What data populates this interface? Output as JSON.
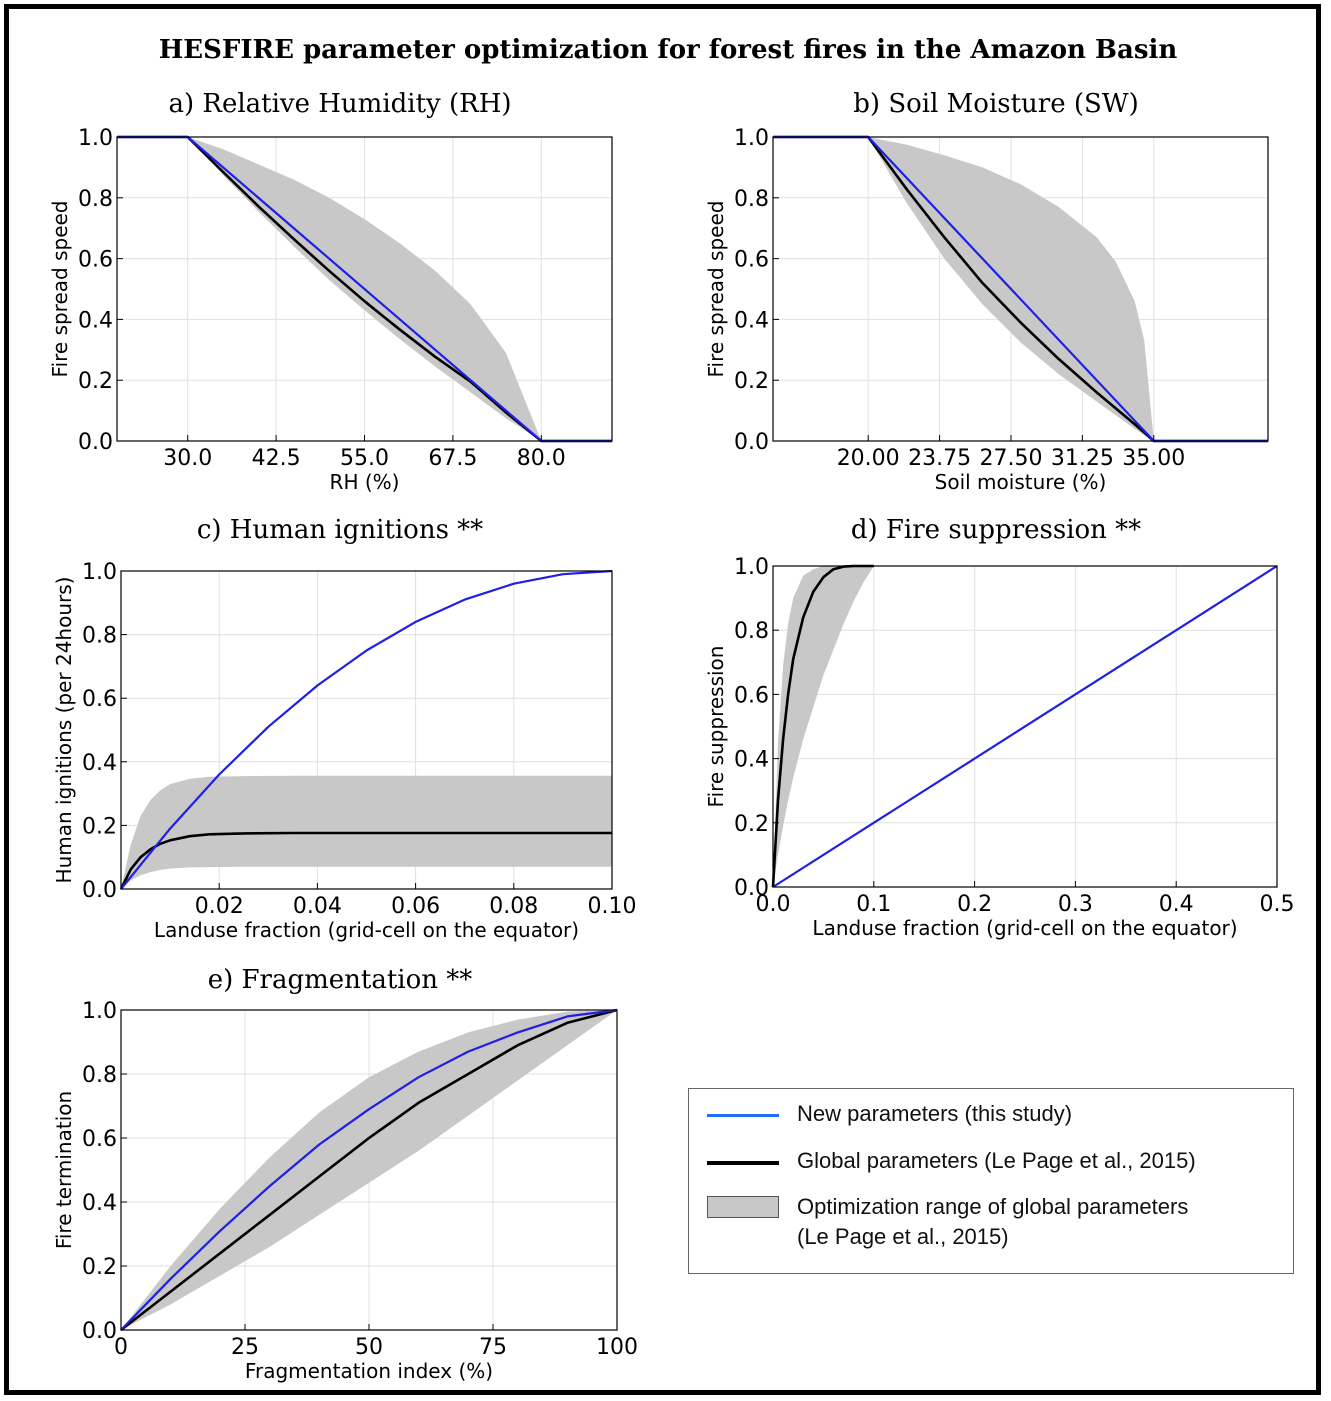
{
  "figure_title": "HESFIRE parameter optimization for forest fires in the Amazon Basin",
  "legend": {
    "new_label": "New parameters (this study)",
    "global_label": "Global parameters (Le Page et al., 2015)",
    "range_label_1": "Optimization range of global parameters",
    "range_label_2": "(Le Page et al., 2015)"
  },
  "colors": {
    "new": "#1f1fe6",
    "global": "#000000",
    "range": "#c8c8c8"
  },
  "chart_data": [
    {
      "id": "a",
      "type": "line",
      "title": "a) Relative Humidity (RH)",
      "xlabel": "RH (%)",
      "ylabel": "Fire spread speed",
      "xlim": [
        20,
        90
      ],
      "ylim": [
        0,
        1
      ],
      "xticks": [
        30,
        42.5,
        55,
        67.5,
        80
      ],
      "xtick_labels": [
        "30.0",
        "42.5",
        "55.0",
        "67.5",
        "80.0"
      ],
      "yticks": [
        0,
        0.2,
        0.4,
        0.6,
        0.8,
        1.0
      ],
      "ytick_labels": [
        "0.0",
        "0.2",
        "0.4",
        "0.6",
        "0.8",
        "1.0"
      ],
      "grid": true,
      "series": [
        {
          "role": "new",
          "x": [
            20,
            30,
            80,
            90
          ],
          "y": [
            1,
            1,
            0,
            0
          ]
        },
        {
          "role": "global",
          "x": [
            20,
            30,
            35,
            40,
            45,
            50,
            55,
            60,
            65,
            70,
            75,
            80,
            90
          ],
          "y": [
            1,
            1,
            0.885,
            0.772,
            0.664,
            0.56,
            0.46,
            0.366,
            0.277,
            0.195,
            0.094,
            0,
            0
          ]
        }
      ],
      "band": {
        "x": [
          30,
          35,
          40,
          45,
          50,
          55,
          60,
          65,
          70,
          75,
          80
        ],
        "upper": [
          1,
          0.96,
          0.91,
          0.86,
          0.8,
          0.73,
          0.65,
          0.56,
          0.45,
          0.29,
          0
        ],
        "lower": [
          1,
          0.875,
          0.755,
          0.64,
          0.53,
          0.43,
          0.335,
          0.245,
          0.16,
          0.075,
          0
        ]
      }
    },
    {
      "id": "b",
      "type": "line",
      "title": "b) Soil Moisture (SW)",
      "xlabel": "Soil moisture (%)",
      "ylabel": "Fire spread speed",
      "xlim": [
        15,
        41
      ],
      "ylim": [
        0,
        1
      ],
      "xticks": [
        20,
        23.75,
        27.5,
        31.25,
        35
      ],
      "xtick_labels": [
        "20.00",
        "23.75",
        "27.50",
        "31.25",
        "35.00"
      ],
      "yticks": [
        0,
        0.2,
        0.4,
        0.6,
        0.8,
        1.0
      ],
      "ytick_labels": [
        "0.0",
        "0.2",
        "0.4",
        "0.6",
        "0.8",
        "1.0"
      ],
      "grid": true,
      "series": [
        {
          "role": "new",
          "x": [
            15,
            20,
            35,
            41
          ],
          "y": [
            1,
            1,
            0,
            0
          ]
        },
        {
          "role": "global",
          "x": [
            15,
            20,
            22,
            24,
            26,
            28,
            30,
            32,
            34,
            35,
            41
          ],
          "y": [
            1,
            1,
            0.83,
            0.67,
            0.52,
            0.39,
            0.27,
            0.16,
            0.055,
            0,
            0
          ]
        }
      ],
      "band": {
        "x": [
          20,
          22,
          24,
          26,
          28,
          30,
          32,
          33,
          34,
          34.5,
          35
        ],
        "upper": [
          1,
          0.975,
          0.94,
          0.9,
          0.845,
          0.77,
          0.67,
          0.59,
          0.46,
          0.33,
          0
        ],
        "lower": [
          1,
          0.785,
          0.6,
          0.45,
          0.325,
          0.22,
          0.13,
          0.085,
          0.04,
          0.02,
          0
        ]
      }
    },
    {
      "id": "c",
      "type": "line",
      "title": "c) Human ignitions **",
      "xlabel": "Landuse fraction (grid-cell on the equator)",
      "ylabel": "Human ignitions (per 24hours)",
      "xlim": [
        0,
        0.1
      ],
      "ylim": [
        0,
        1
      ],
      "xticks": [
        0.02,
        0.04,
        0.06,
        0.08,
        0.1
      ],
      "xtick_labels": [
        "0.02",
        "0.04",
        "0.06",
        "0.08",
        "0.10"
      ],
      "yticks": [
        0,
        0.2,
        0.4,
        0.6,
        0.8,
        1.0
      ],
      "ytick_labels": [
        "0.0",
        "0.2",
        "0.4",
        "0.6",
        "0.8",
        "1.0"
      ],
      "grid": true,
      "series": [
        {
          "role": "new",
          "x": [
            0,
            0.01,
            0.02,
            0.03,
            0.04,
            0.05,
            0.06,
            0.07,
            0.08,
            0.09,
            0.1
          ],
          "y": [
            0,
            0.19,
            0.36,
            0.51,
            0.64,
            0.75,
            0.84,
            0.91,
            0.96,
            0.99,
            1.0
          ]
        },
        {
          "role": "global",
          "x": [
            0,
            0.002,
            0.004,
            0.006,
            0.008,
            0.01,
            0.014,
            0.018,
            0.025,
            0.035,
            0.1
          ],
          "y": [
            0,
            0.062,
            0.1,
            0.125,
            0.142,
            0.153,
            0.166,
            0.172,
            0.175,
            0.176,
            0.176
          ]
        }
      ],
      "band": {
        "x": [
          0,
          0.002,
          0.004,
          0.006,
          0.008,
          0.01,
          0.014,
          0.018,
          0.025,
          0.035,
          0.1
        ],
        "upper": [
          0,
          0.14,
          0.23,
          0.28,
          0.31,
          0.33,
          0.347,
          0.353,
          0.355,
          0.356,
          0.356
        ],
        "lower": [
          0,
          0.027,
          0.043,
          0.053,
          0.06,
          0.064,
          0.068,
          0.069,
          0.07,
          0.07,
          0.07
        ]
      }
    },
    {
      "id": "d",
      "type": "line",
      "title": "d) Fire suppression **",
      "xlabel": "Landuse fraction (grid-cell on the equator)",
      "ylabel": "Fire suppression",
      "xlim": [
        0,
        0.5
      ],
      "ylim": [
        0,
        1
      ],
      "xticks": [
        0,
        0.1,
        0.2,
        0.3,
        0.4,
        0.5
      ],
      "xtick_labels": [
        "0.0",
        "0.1",
        "0.2",
        "0.3",
        "0.4",
        "0.5"
      ],
      "yticks": [
        0,
        0.2,
        0.4,
        0.6,
        0.8,
        1.0
      ],
      "ytick_labels": [
        "0.0",
        "0.2",
        "0.4",
        "0.6",
        "0.8",
        "1.0"
      ],
      "grid": true,
      "series": [
        {
          "role": "new",
          "x": [
            0,
            0.5
          ],
          "y": [
            0,
            1
          ]
        },
        {
          "role": "global",
          "x": [
            0,
            0.005,
            0.01,
            0.015,
            0.02,
            0.03,
            0.04,
            0.05,
            0.06,
            0.07,
            0.08,
            0.1
          ],
          "y": [
            0,
            0.27,
            0.46,
            0.6,
            0.71,
            0.84,
            0.92,
            0.965,
            0.99,
            0.998,
            1.0,
            1.0
          ]
        }
      ],
      "band": {
        "x": [
          0,
          0.005,
          0.01,
          0.015,
          0.02,
          0.03,
          0.04,
          0.05,
          0.06,
          0.07,
          0.08,
          0.09,
          0.1
        ],
        "upper": [
          0,
          0.45,
          0.69,
          0.82,
          0.9,
          0.97,
          0.99,
          1.0,
          1.0,
          1.0,
          1.0,
          1.0,
          1.0
        ],
        "lower": [
          0,
          0.1,
          0.19,
          0.27,
          0.34,
          0.46,
          0.56,
          0.66,
          0.74,
          0.82,
          0.89,
          0.95,
          1.0
        ]
      }
    },
    {
      "id": "e",
      "type": "line",
      "title": "e) Fragmentation **",
      "xlabel": "Fragmentation index (%)",
      "ylabel": "Fire termination",
      "xlim": [
        0,
        100
      ],
      "ylim": [
        0,
        1
      ],
      "xticks": [
        0,
        25,
        50,
        75,
        100
      ],
      "xtick_labels": [
        "0",
        "25",
        "50",
        "75",
        "100"
      ],
      "yticks": [
        0,
        0.2,
        0.4,
        0.6,
        0.8,
        1.0
      ],
      "ytick_labels": [
        "0.0",
        "0.2",
        "0.4",
        "0.6",
        "0.8",
        "1.0"
      ],
      "grid": true,
      "series": [
        {
          "role": "new",
          "x": [
            0,
            10,
            20,
            30,
            40,
            50,
            60,
            70,
            80,
            90,
            100
          ],
          "y": [
            0,
            0.16,
            0.31,
            0.45,
            0.58,
            0.69,
            0.79,
            0.87,
            0.93,
            0.98,
            1.0
          ]
        },
        {
          "role": "global",
          "x": [
            0,
            10,
            20,
            30,
            40,
            50,
            60,
            70,
            80,
            90,
            100
          ],
          "y": [
            0,
            0.12,
            0.24,
            0.36,
            0.48,
            0.6,
            0.71,
            0.8,
            0.89,
            0.96,
            1.0
          ]
        }
      ],
      "band": {
        "x": [
          0,
          10,
          20,
          30,
          40,
          50,
          60,
          70,
          80,
          90,
          100
        ],
        "upper": [
          0,
          0.2,
          0.38,
          0.54,
          0.68,
          0.79,
          0.87,
          0.93,
          0.97,
          0.995,
          1.0
        ],
        "lower": [
          0,
          0.08,
          0.17,
          0.26,
          0.36,
          0.46,
          0.56,
          0.67,
          0.78,
          0.89,
          1.0
        ]
      }
    }
  ]
}
